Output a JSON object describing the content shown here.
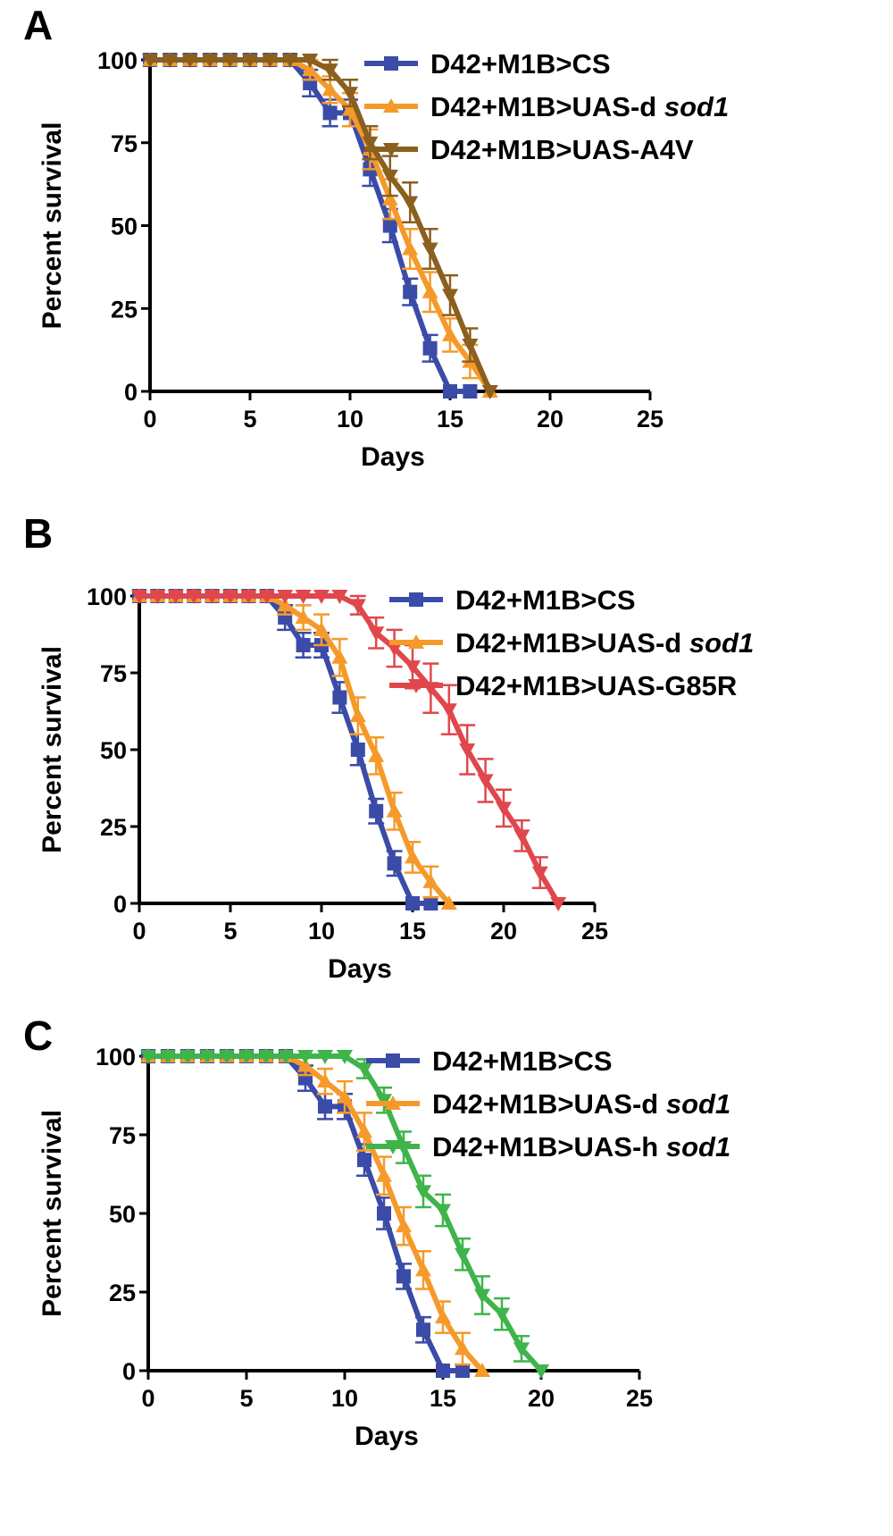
{
  "chart_data": [
    {
      "panel": "A",
      "type": "line",
      "xlabel": "Days",
      "ylabel": "Percent survival",
      "xlim": [
        0,
        25
      ],
      "ylim": [
        0,
        100
      ],
      "xticks": [
        "0",
        "5",
        "10",
        "15",
        "20",
        "25"
      ],
      "yticks": [
        "0",
        "25",
        "50",
        "75",
        "100"
      ],
      "grid": false,
      "legend_position": "top-right",
      "series": [
        {
          "name": "D42+M1B>CS",
          "name_main": "D42+M1B>CS",
          "name_italic": "",
          "color": "#3b4ba8",
          "marker": "square",
          "x": [
            0,
            1,
            2,
            3,
            4,
            5,
            6,
            7,
            8,
            9,
            10,
            11,
            12,
            13,
            14,
            15,
            16
          ],
          "y": [
            100,
            100,
            100,
            100,
            100,
            100,
            100,
            100,
            93,
            84,
            84,
            67,
            50,
            30,
            13,
            0,
            0
          ],
          "err": [
            0,
            0,
            0,
            0,
            0,
            0,
            0,
            0,
            4,
            4,
            4,
            5,
            5,
            4,
            4,
            0,
            0
          ]
        },
        {
          "name": "D42+M1B>UAS-d sod1",
          "name_main": "D42+M1B>UAS-d ",
          "name_italic": "sod1",
          "color": "#f59a2a",
          "marker": "triangle-up",
          "x": [
            0,
            1,
            2,
            3,
            4,
            5,
            6,
            7,
            8,
            9,
            10,
            11,
            12,
            13,
            14,
            15,
            16,
            17
          ],
          "y": [
            100,
            100,
            100,
            100,
            100,
            100,
            100,
            100,
            97,
            91,
            85,
            73,
            58,
            43,
            30,
            17,
            9,
            0
          ],
          "err": [
            0,
            0,
            0,
            0,
            0,
            0,
            0,
            0,
            3,
            4,
            5,
            6,
            6,
            6,
            6,
            5,
            5,
            0
          ]
        },
        {
          "name": "D42+M1B>UAS-A4V",
          "name_main": "D42+M1B>UAS-A4V",
          "name_italic": "",
          "color": "#8b5f1e",
          "marker": "triangle-down",
          "x": [
            0,
            1,
            2,
            3,
            4,
            5,
            6,
            7,
            8,
            9,
            10,
            11,
            12,
            13,
            14,
            15,
            16,
            17
          ],
          "y": [
            100,
            100,
            100,
            100,
            100,
            100,
            100,
            100,
            100,
            97,
            90,
            75,
            65,
            57,
            43,
            29,
            14,
            0
          ],
          "err": [
            0,
            0,
            0,
            0,
            0,
            0,
            0,
            0,
            0,
            3,
            4,
            5,
            6,
            6,
            6,
            6,
            5,
            0
          ]
        }
      ]
    },
    {
      "panel": "B",
      "type": "line",
      "xlabel": "Days",
      "ylabel": "Percent survival",
      "xlim": [
        0,
        25
      ],
      "ylim": [
        0,
        100
      ],
      "xticks": [
        "0",
        "5",
        "10",
        "15",
        "20",
        "25"
      ],
      "yticks": [
        "0",
        "25",
        "50",
        "75",
        "100"
      ],
      "grid": false,
      "legend_position": "top-right",
      "series": [
        {
          "name": "D42+M1B>CS",
          "name_main": "D42+M1B>CS",
          "name_italic": "",
          "color": "#3b4ba8",
          "marker": "square",
          "x": [
            0,
            1,
            2,
            3,
            4,
            5,
            6,
            7,
            8,
            9,
            10,
            11,
            12,
            13,
            14,
            15,
            16
          ],
          "y": [
            100,
            100,
            100,
            100,
            100,
            100,
            100,
            100,
            93,
            84,
            84,
            67,
            50,
            30,
            13,
            0,
            0
          ],
          "err": [
            0,
            0,
            0,
            0,
            0,
            0,
            0,
            0,
            4,
            4,
            4,
            5,
            5,
            4,
            4,
            0,
            0
          ]
        },
        {
          "name": "D42+M1B>UAS-d sod1",
          "name_main": "D42+M1B>UAS-d ",
          "name_italic": "sod1",
          "color": "#f59a2a",
          "marker": "triangle-up",
          "x": [
            0,
            1,
            2,
            3,
            4,
            5,
            6,
            7,
            8,
            9,
            10,
            11,
            12,
            13,
            14,
            15,
            16,
            17
          ],
          "y": [
            100,
            100,
            100,
            100,
            100,
            100,
            100,
            100,
            97,
            93,
            89,
            80,
            61,
            48,
            30,
            15,
            7,
            0
          ],
          "err": [
            0,
            0,
            0,
            0,
            0,
            0,
            0,
            0,
            3,
            4,
            5,
            6,
            6,
            6,
            6,
            5,
            5,
            0
          ]
        },
        {
          "name": "D42+M1B>UAS-G85R",
          "name_main": "D42+M1B>UAS-G85R",
          "name_italic": "",
          "color": "#e0474c",
          "marker": "triangle-down",
          "x": [
            0,
            1,
            2,
            3,
            4,
            5,
            6,
            7,
            8,
            9,
            10,
            11,
            12,
            13,
            14,
            15,
            16,
            17,
            18,
            19,
            20,
            21,
            22,
            23
          ],
          "y": [
            100,
            100,
            100,
            100,
            100,
            100,
            100,
            100,
            100,
            100,
            100,
            100,
            97,
            88,
            83,
            77,
            70,
            63,
            50,
            40,
            31,
            22,
            10,
            0
          ],
          "err": [
            0,
            0,
            0,
            0,
            0,
            0,
            0,
            0,
            0,
            0,
            0,
            0,
            3,
            5,
            6,
            7,
            8,
            8,
            8,
            7,
            6,
            5,
            5,
            0
          ]
        }
      ]
    },
    {
      "panel": "C",
      "type": "line",
      "xlabel": "Days",
      "ylabel": "Percent survival",
      "xlim": [
        0,
        25
      ],
      "ylim": [
        0,
        100
      ],
      "xticks": [
        "0",
        "5",
        "10",
        "15",
        "20",
        "25"
      ],
      "yticks": [
        "0",
        "25",
        "50",
        "75",
        "100"
      ],
      "grid": false,
      "legend_position": "top-right",
      "series": [
        {
          "name": "D42+M1B>CS",
          "name_main": "D42+M1B>CS",
          "name_italic": "",
          "color": "#3b4ba8",
          "marker": "square",
          "x": [
            0,
            1,
            2,
            3,
            4,
            5,
            6,
            7,
            8,
            9,
            10,
            11,
            12,
            13,
            14,
            15,
            16
          ],
          "y": [
            100,
            100,
            100,
            100,
            100,
            100,
            100,
            100,
            93,
            84,
            84,
            67,
            50,
            30,
            13,
            0,
            0
          ],
          "err": [
            0,
            0,
            0,
            0,
            0,
            0,
            0,
            0,
            4,
            4,
            4,
            5,
            5,
            4,
            4,
            0,
            0
          ]
        },
        {
          "name": "D42+M1B>UAS-d sod1",
          "name_main": "D42+M1B>UAS-d ",
          "name_italic": "sod1",
          "color": "#f59a2a",
          "marker": "triangle-up",
          "x": [
            0,
            1,
            2,
            3,
            4,
            5,
            6,
            7,
            8,
            9,
            10,
            11,
            12,
            13,
            14,
            15,
            16,
            17
          ],
          "y": [
            100,
            100,
            100,
            100,
            100,
            100,
            100,
            100,
            97,
            92,
            87,
            76,
            62,
            46,
            32,
            17,
            7,
            0
          ],
          "err": [
            0,
            0,
            0,
            0,
            0,
            0,
            0,
            0,
            3,
            4,
            5,
            6,
            6,
            6,
            6,
            5,
            5,
            0
          ]
        },
        {
          "name": "D42+M1B>UAS-h sod1",
          "name_main": "D42+M1B>UAS-h ",
          "name_italic": "sod1",
          "color": "#3fb44a",
          "marker": "triangle-down",
          "x": [
            0,
            1,
            2,
            3,
            4,
            5,
            6,
            7,
            8,
            9,
            10,
            11,
            12,
            13,
            14,
            15,
            16,
            17,
            18,
            19,
            20
          ],
          "y": [
            100,
            100,
            100,
            100,
            100,
            100,
            100,
            100,
            100,
            100,
            100,
            96,
            86,
            71,
            57,
            51,
            37,
            24,
            18,
            7,
            0
          ],
          "err": [
            0,
            0,
            0,
            0,
            0,
            0,
            0,
            0,
            0,
            0,
            0,
            3,
            4,
            5,
            5,
            5,
            5,
            6,
            5,
            4,
            0
          ]
        }
      ]
    }
  ]
}
